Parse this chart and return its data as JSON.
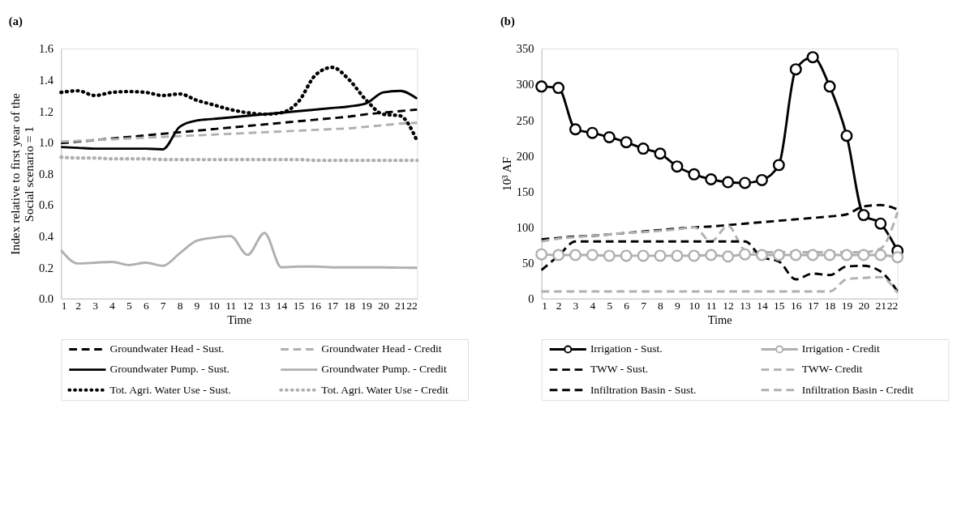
{
  "chart_data": [
    {
      "type": "line",
      "title": "(a)",
      "xlabel": "Time",
      "ylabel": "Index relative to first year of the Social scenario = 1",
      "x": [
        1,
        2,
        3,
        4,
        5,
        6,
        7,
        8,
        9,
        10,
        11,
        12,
        13,
        14,
        15,
        16,
        17,
        18,
        19,
        20,
        21,
        22
      ],
      "xlim": [
        1,
        22
      ],
      "xticks": [
        1,
        2,
        3,
        4,
        5,
        6,
        7,
        8,
        9,
        10,
        11,
        12,
        13,
        14,
        15,
        16,
        17,
        18,
        19,
        20,
        21,
        22
      ],
      "ylim": [
        0,
        1.6
      ],
      "yticks": [
        {
          "value": 0,
          "label": "0.0"
        },
        0.2,
        0.4,
        0.6,
        0.8,
        {
          "value": 1,
          "label": "1.0"
        },
        1.2,
        1.4,
        1.6
      ],
      "grid": false,
      "legend": "bottom",
      "marker": "none",
      "series": [
        {
          "name": "Groundwater Head - Sust.",
          "color": "#000000",
          "line_style": "dashed",
          "values": [
            0.995,
            1.005,
            1.015,
            1.025,
            1.035,
            1.045,
            1.055,
            1.065,
            1.075,
            1.085,
            1.095,
            1.105,
            1.115,
            1.125,
            1.135,
            1.145,
            1.155,
            1.165,
            1.18,
            1.19,
            1.2,
            1.21
          ]
        },
        {
          "name": "Groundwater Head - Credit",
          "color": "#b0b0b0",
          "line_style": "dashed",
          "values": [
            1.005,
            1.01,
            1.015,
            1.02,
            1.025,
            1.03,
            1.035,
            1.04,
            1.045,
            1.05,
            1.055,
            1.06,
            1.065,
            1.07,
            1.075,
            1.08,
            1.085,
            1.09,
            1.1,
            1.11,
            1.12,
            1.125
          ]
        },
        {
          "name": "Groundwater Pump. - Sust.",
          "color": "#000000",
          "line_style": "solid",
          "values": [
            0.97,
            0.965,
            0.96,
            0.96,
            0.96,
            0.96,
            0.955,
            1.1,
            1.14,
            1.15,
            1.16,
            1.17,
            1.18,
            1.19,
            1.2,
            1.21,
            1.22,
            1.23,
            1.25,
            1.32,
            1.33,
            1.28
          ]
        },
        {
          "name": "Groundwater Pump. - Credit",
          "color": "#b0b0b0",
          "line_style": "solid",
          "values": [
            0.31,
            0.225,
            0.23,
            0.235,
            0.215,
            0.23,
            0.21,
            0.29,
            0.37,
            0.39,
            0.4,
            0.28,
            0.42,
            0.2,
            0.205,
            0.205,
            0.2,
            0.2,
            0.2,
            0.2,
            0.198,
            0.197
          ]
        },
        {
          "name": "Tot. Agri. Water Use - Sust.",
          "color": "#000000",
          "line_style": "dotted",
          "values": [
            1.32,
            1.33,
            1.3,
            1.32,
            1.325,
            1.32,
            1.3,
            1.31,
            1.27,
            1.24,
            1.21,
            1.19,
            1.18,
            1.19,
            1.26,
            1.43,
            1.48,
            1.4,
            1.27,
            1.18,
            1.17,
            1.01
          ]
        },
        {
          "name": "Tot. Agri. Water Use - Credit",
          "color": "#b0b0b0",
          "line_style": "dotted",
          "values": [
            0.905,
            0.9,
            0.9,
            0.895,
            0.895,
            0.895,
            0.89,
            0.89,
            0.89,
            0.89,
            0.89,
            0.89,
            0.89,
            0.89,
            0.89,
            0.885,
            0.885,
            0.885,
            0.885,
            0.885,
            0.885,
            0.885
          ]
        }
      ]
    },
    {
      "type": "line",
      "title": "(b)",
      "xlabel": "Time",
      "ylabel": "10³ AF",
      "x": [
        1,
        2,
        3,
        4,
        5,
        6,
        7,
        8,
        9,
        10,
        11,
        12,
        13,
        14,
        15,
        16,
        17,
        18,
        19,
        20,
        21,
        22
      ],
      "xlim": [
        1,
        22
      ],
      "xticks": [
        1,
        2,
        3,
        4,
        5,
        6,
        7,
        8,
        9,
        10,
        11,
        12,
        13,
        14,
        15,
        16,
        17,
        18,
        19,
        20,
        21,
        22
      ],
      "ylim": [
        0,
        350
      ],
      "yticks": [
        0,
        50,
        100,
        150,
        200,
        250,
        300,
        350
      ],
      "grid": false,
      "legend": "bottom",
      "series": [
        {
          "name": "Irrigation - Sust.",
          "color": "#000000",
          "line_style": "solid",
          "marker": "circle",
          "values": [
            297,
            295,
            237,
            232,
            226,
            219,
            210,
            203,
            185,
            174,
            167,
            163,
            162,
            166,
            187,
            321,
            338,
            297,
            228,
            117,
            105,
            67
          ]
        },
        {
          "name": "Irrigation - Credit",
          "color": "#b0b0b0",
          "line_style": "solid",
          "marker": "circle",
          "values": [
            62,
            61,
            61,
            61,
            60,
            60,
            60,
            60,
            60,
            60,
            61,
            59,
            62,
            61,
            61,
            61,
            61,
            61,
            61,
            61,
            61,
            58
          ]
        },
        {
          "name": "TWW - Sust.",
          "color": "#000000",
          "line_style": "dashed",
          "marker": "none",
          "values": [
            83,
            85,
            87,
            88,
            90,
            92,
            94,
            96,
            98,
            100,
            101,
            103,
            105,
            107,
            109,
            111,
            113,
            115,
            118,
            129,
            131,
            125
          ]
        },
        {
          "name": "TWW- Credit",
          "color": "#b0b0b0",
          "line_style": "dashed",
          "marker": "none",
          "values": [
            80,
            84,
            86,
            88,
            90,
            92,
            93,
            95,
            97,
            100,
            80,
            102,
            68,
            65,
            65,
            65,
            65,
            65,
            65,
            65,
            70,
            121
          ]
        },
        {
          "name": "Infiltration Basin - Sust.",
          "color": "#000000",
          "line_style": "dashed",
          "marker": "none",
          "values": [
            40,
            60,
            80,
            80,
            80,
            80,
            80,
            80,
            80,
            80,
            80,
            80,
            80,
            58,
            52,
            27,
            35,
            33,
            45,
            46,
            38,
            10
          ]
        },
        {
          "name": "Infiltration Basin - Credit",
          "color": "#b0b0b0",
          "line_style": "dashed",
          "marker": "none",
          "values": [
            10,
            10,
            10,
            10,
            10,
            10,
            10,
            10,
            10,
            10,
            10,
            10,
            10,
            10,
            10,
            10,
            10,
            10,
            27,
            29,
            30,
            8
          ]
        }
      ]
    }
  ]
}
